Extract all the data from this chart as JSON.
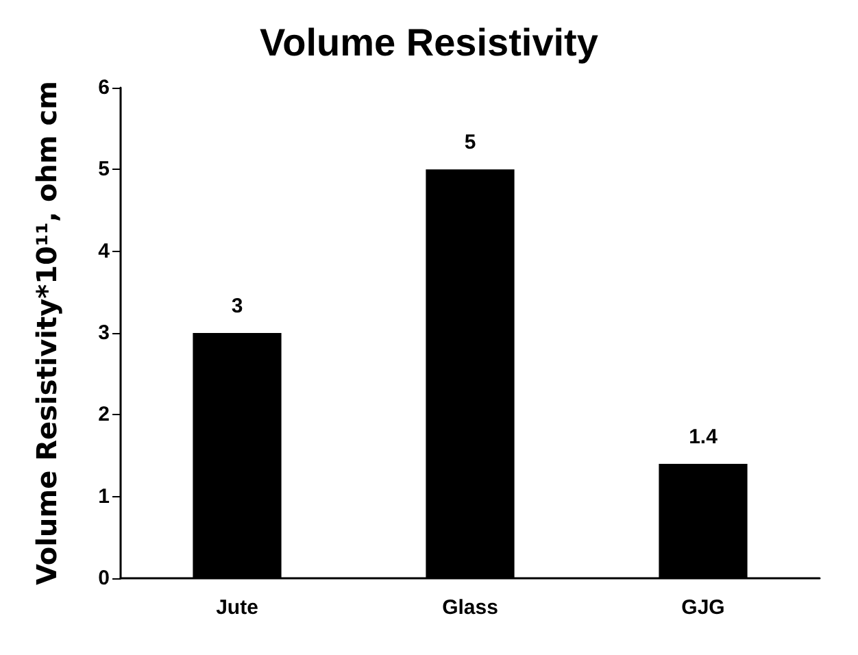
{
  "chart_data": {
    "type": "bar",
    "title": "Volume Resistivity",
    "ylabel": "Volume Resistivity*10¹¹, ohm cm",
    "categories": [
      "Jute",
      "Glass",
      "GJG"
    ],
    "values": [
      3,
      5,
      1.4
    ],
    "color": "#000000",
    "ylim": [
      0,
      6
    ],
    "yticks": [
      0,
      1,
      2,
      3,
      4,
      5,
      6
    ],
    "grid": false,
    "data_labels": true
  }
}
